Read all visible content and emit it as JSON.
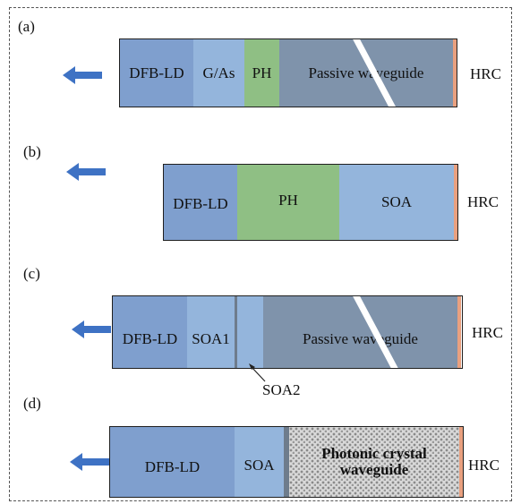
{
  "panels": {
    "a": {
      "label": "(a)",
      "segments": [
        "DFB-LD",
        "G/As",
        "PH",
        "Passive waveguide"
      ],
      "end_label": "HRC"
    },
    "b": {
      "label": "(b)",
      "segments": [
        "DFB-LD",
        "PH",
        "SOA"
      ],
      "end_label": "HRC"
    },
    "c": {
      "label": "(c)",
      "segments": [
        "DFB-LD",
        "SOA1",
        "Passive waveguide"
      ],
      "callout": "SOA2",
      "end_label": "HRC"
    },
    "d": {
      "label": "(d)",
      "segments": [
        "DFB-LD",
        "SOA"
      ],
      "pc_line1": "Photonic crystal",
      "pc_line2": "waveguide",
      "end_label": "HRC"
    }
  },
  "colors": {
    "dfb": "#7f9fce",
    "soa": "#94b5dc",
    "ph": "#8fbf84",
    "passive": "#7f93ab",
    "hrc": "#e9a07f",
    "arrow": "#3e72c4"
  },
  "icons": {
    "output_arrow": "left-arrow-icon"
  }
}
